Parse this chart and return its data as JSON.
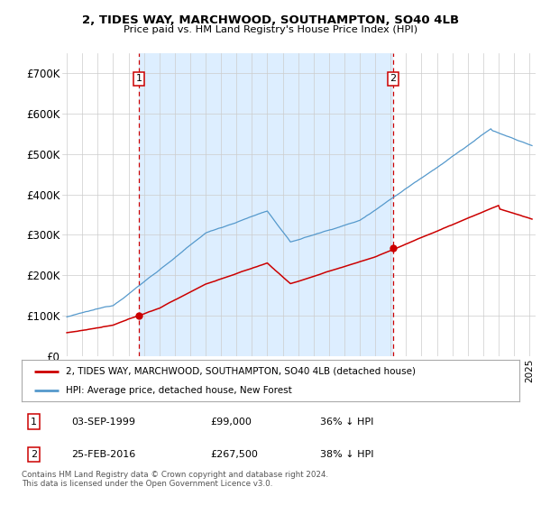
{
  "title": "2, TIDES WAY, MARCHWOOD, SOUTHAMPTON, SO40 4LB",
  "subtitle": "Price paid vs. HM Land Registry's House Price Index (HPI)",
  "ylim": [
    0,
    750000
  ],
  "yticks": [
    0,
    100000,
    200000,
    300000,
    400000,
    500000,
    600000,
    700000
  ],
  "ytick_labels": [
    "£0",
    "£100K",
    "£200K",
    "£300K",
    "£400K",
    "£500K",
    "£600K",
    "£700K"
  ],
  "line1_color": "#cc0000",
  "line2_color": "#5599cc",
  "shade_color": "#ddeeff",
  "vline_color": "#cc0000",
  "purchase1_year": 1999.67,
  "purchase1_price": 99000,
  "purchase2_year": 2016.14,
  "purchase2_price": 267500,
  "legend_line1": "2, TIDES WAY, MARCHWOOD, SOUTHAMPTON, SO40 4LB (detached house)",
  "legend_line2": "HPI: Average price, detached house, New Forest",
  "table_row1": [
    "1",
    "03-SEP-1999",
    "£99,000",
    "36% ↓ HPI"
  ],
  "table_row2": [
    "2",
    "25-FEB-2016",
    "£267,500",
    "38% ↓ HPI"
  ],
  "footer": "Contains HM Land Registry data © Crown copyright and database right 2024.\nThis data is licensed under the Open Government Licence v3.0.",
  "bg": "#ffffff",
  "grid_color": "#cccccc"
}
